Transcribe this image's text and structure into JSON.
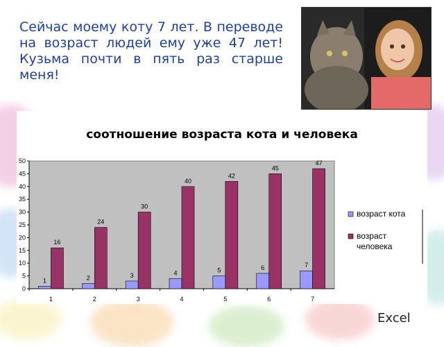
{
  "caption": "Сейчас моему коту 7 лет. В переводе на возраст людей ему уже 47 лет! Кузьма почти в пять раз старше меня!",
  "footer_label": "Excel",
  "colors": {
    "caption_text": "#1f3f9f",
    "series_cat": "#9999ff",
    "series_human": "#993366",
    "plot_bg": "#c0c0c0"
  },
  "chart_data": {
    "type": "bar",
    "title": "соотношение возраста кота и человека",
    "categories": [
      "1",
      "2",
      "3",
      "4",
      "5",
      "6",
      "7"
    ],
    "series": [
      {
        "name": "возраст кота",
        "values": [
          1,
          2,
          3,
          4,
          5,
          6,
          7
        ]
      },
      {
        "name": "возраст человека",
        "values": [
          16,
          24,
          30,
          40,
          42,
          45,
          47
        ]
      }
    ],
    "ylim": [
      0,
      50
    ],
    "yticks": [
      0,
      5,
      10,
      15,
      20,
      25,
      30,
      35,
      40,
      45,
      50
    ],
    "grid": false,
    "legend": "right",
    "data_labels": true
  }
}
